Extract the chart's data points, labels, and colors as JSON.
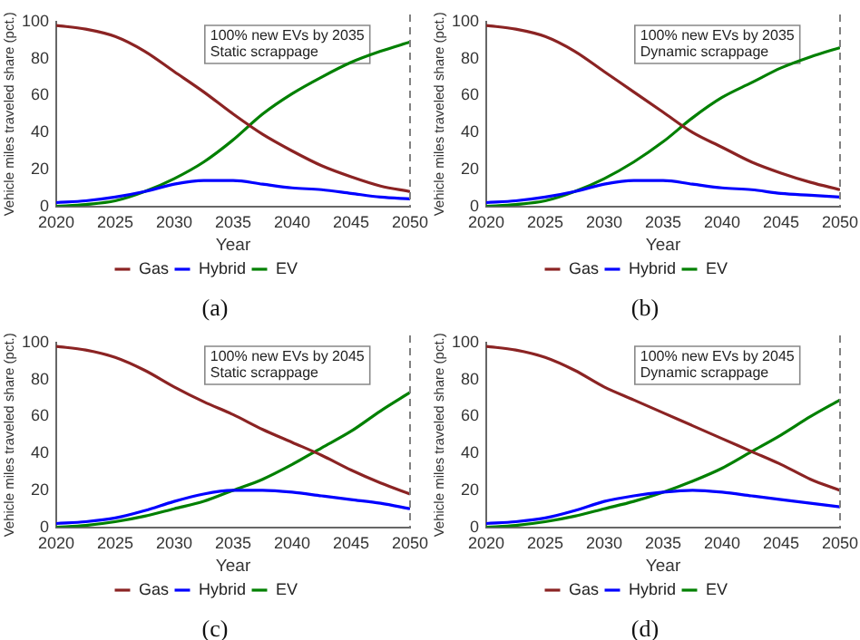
{
  "chart_data": [
    {
      "type": "line",
      "title": "(a)",
      "xlabel": "Year",
      "ylabel": "Vehicle miles traveled share (pct.)",
      "annotations": [
        "100% new EVs by 2035",
        "Static scrappage"
      ],
      "x": [
        2020,
        2022.5,
        2025,
        2027.5,
        2030,
        2032.5,
        2035,
        2037.5,
        2040,
        2042.5,
        2045,
        2047.5,
        2050
      ],
      "series": [
        {
          "name": "Gas",
          "color": "#8b2323",
          "values": [
            98,
            96,
            92,
            84,
            73,
            62,
            50,
            39,
            30,
            22,
            16,
            11,
            8
          ]
        },
        {
          "name": "Hybrid",
          "color": "#0000ff",
          "values": [
            2,
            3,
            5,
            8,
            12,
            14,
            14,
            12,
            10,
            9,
            7,
            5,
            4
          ]
        },
        {
          "name": "EV",
          "color": "#008000",
          "values": [
            0,
            1,
            3,
            8,
            15,
            24,
            36,
            50,
            61,
            70,
            78,
            84,
            89
          ]
        }
      ],
      "xlim": [
        2020,
        2050
      ],
      "xticks": [
        2020,
        2025,
        2030,
        2035,
        2040,
        2045,
        2050
      ],
      "ylim": [
        0,
        100
      ],
      "yticks": [
        0,
        20,
        40,
        60,
        80,
        100
      ],
      "ref_lines": [
        {
          "axis": "x",
          "value": 2050,
          "color": "#808080",
          "line_style": "dashed"
        }
      ],
      "legend": "bottom",
      "marker": "none",
      "line_style": "solid"
    },
    {
      "type": "line",
      "title": "(b)",
      "xlabel": "Year",
      "ylabel": "Vehicle miles traveled share (pct.)",
      "annotations": [
        "100% new EVs by 2035",
        "Dynamic scrappage"
      ],
      "x": [
        2020,
        2022.5,
        2025,
        2027.5,
        2030,
        2032.5,
        2035,
        2037.5,
        2040,
        2042.5,
        2045,
        2047.5,
        2050
      ],
      "series": [
        {
          "name": "Gas",
          "color": "#8b2323",
          "values": [
            98,
            96,
            92,
            84,
            73,
            62,
            51,
            40,
            32,
            24,
            18,
            13,
            9
          ]
        },
        {
          "name": "Hybrid",
          "color": "#0000ff",
          "values": [
            2,
            3,
            5,
            8,
            12,
            14,
            14,
            12,
            10,
            9,
            7,
            6,
            5
          ]
        },
        {
          "name": "EV",
          "color": "#008000",
          "values": [
            0,
            1,
            3,
            8,
            15,
            24,
            35,
            48,
            59,
            67,
            75,
            81,
            86
          ]
        }
      ],
      "xlim": [
        2020,
        2050
      ],
      "xticks": [
        2020,
        2025,
        2030,
        2035,
        2040,
        2045,
        2050
      ],
      "ylim": [
        0,
        100
      ],
      "yticks": [
        0,
        20,
        40,
        60,
        80,
        100
      ],
      "ref_lines": [
        {
          "axis": "x",
          "value": 2050,
          "color": "#808080",
          "line_style": "dashed"
        }
      ],
      "legend": "bottom",
      "marker": "none",
      "line_style": "solid"
    },
    {
      "type": "line",
      "title": "(c)",
      "xlabel": "Year",
      "ylabel": "Vehicle miles traveled share (pct.)",
      "annotations": [
        "100% new EVs by 2045",
        "Static scrappage"
      ],
      "x": [
        2020,
        2022.5,
        2025,
        2027.5,
        2030,
        2032.5,
        2035,
        2037.5,
        2040,
        2042.5,
        2045,
        2047.5,
        2050
      ],
      "series": [
        {
          "name": "Gas",
          "color": "#8b2323",
          "values": [
            98,
            96,
            92,
            85,
            76,
            68,
            61,
            53,
            46,
            39,
            31,
            24,
            18
          ]
        },
        {
          "name": "Hybrid",
          "color": "#0000ff",
          "values": [
            2,
            3,
            5,
            9,
            14,
            18,
            20,
            20,
            19,
            17,
            15,
            13,
            10
          ]
        },
        {
          "name": "EV",
          "color": "#008000",
          "values": [
            0,
            1,
            3,
            6,
            10,
            14,
            20,
            26,
            34,
            43,
            52,
            63,
            73
          ]
        }
      ],
      "xlim": [
        2020,
        2050
      ],
      "xticks": [
        2020,
        2025,
        2030,
        2035,
        2040,
        2045,
        2050
      ],
      "ylim": [
        0,
        100
      ],
      "yticks": [
        0,
        20,
        40,
        60,
        80,
        100
      ],
      "ref_lines": [
        {
          "axis": "x",
          "value": 2050,
          "color": "#808080",
          "line_style": "dashed"
        }
      ],
      "legend": "bottom",
      "marker": "none",
      "line_style": "solid"
    },
    {
      "type": "line",
      "title": "(d)",
      "xlabel": "Year",
      "ylabel": "Vehicle miles traveled share (pct.)",
      "annotations": [
        "100% new EVs by 2045",
        "Dynamic scrappage"
      ],
      "x": [
        2020,
        2022.5,
        2025,
        2027.5,
        2030,
        2032.5,
        2035,
        2037.5,
        2040,
        2042.5,
        2045,
        2047.5,
        2050
      ],
      "series": [
        {
          "name": "Gas",
          "color": "#8b2323",
          "values": [
            98,
            96,
            92,
            85,
            76,
            69,
            62,
            55,
            48,
            41,
            34,
            26,
            20
          ]
        },
        {
          "name": "Hybrid",
          "color": "#0000ff",
          "values": [
            2,
            3,
            5,
            9,
            14,
            17,
            19,
            20,
            19,
            17,
            15,
            13,
            11
          ]
        },
        {
          "name": "EV",
          "color": "#008000",
          "values": [
            0,
            1,
            3,
            6,
            10,
            14,
            19,
            25,
            32,
            41,
            50,
            60,
            69
          ]
        }
      ],
      "xlim": [
        2020,
        2050
      ],
      "xticks": [
        2020,
        2025,
        2030,
        2035,
        2040,
        2045,
        2050
      ],
      "ylim": [
        0,
        100
      ],
      "yticks": [
        0,
        20,
        40,
        60,
        80,
        100
      ],
      "ref_lines": [
        {
          "axis": "x",
          "value": 2050,
          "color": "#808080",
          "line_style": "dashed"
        }
      ],
      "legend": "bottom",
      "marker": "none",
      "line_style": "solid"
    }
  ]
}
